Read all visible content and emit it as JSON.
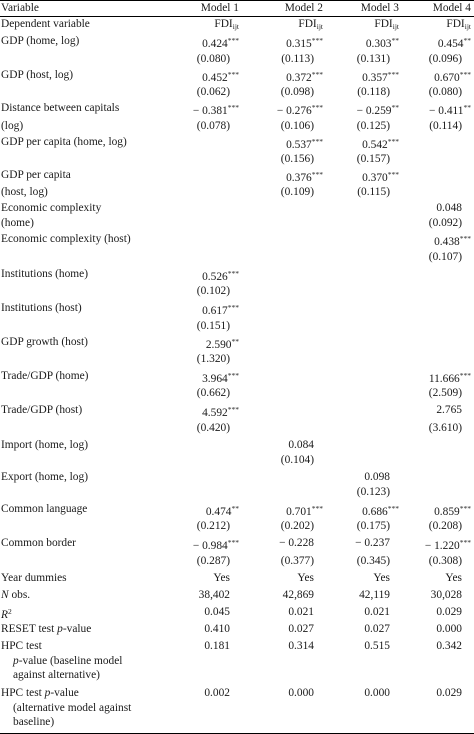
{
  "columns": [
    "Variable",
    "Model 1",
    "Model 2",
    "Model 3",
    "Model 4"
  ],
  "dependent": {
    "label": "Dependent variable",
    "base": "FDI",
    "subscript": "ijt"
  },
  "rows": [
    {
      "label": [
        "GDP (home, log)"
      ],
      "cells": [
        [
          "0.424",
          "***"
        ],
        [
          "0.315",
          "***"
        ],
        [
          "0.303",
          "**"
        ],
        [
          "0.454",
          "**"
        ]
      ],
      "se": [
        "(0.080)",
        "(0.113)",
        "(0.131)",
        "(0.096)"
      ]
    },
    {
      "label": [
        "GDP (host, log)"
      ],
      "cells": [
        [
          "0.452",
          "***"
        ],
        [
          "0.372",
          "***"
        ],
        [
          "0.357",
          "***"
        ],
        [
          "0.670",
          "***"
        ]
      ],
      "se": [
        "(0.062)",
        "(0.098)",
        "(0.118)",
        "(0.080)"
      ]
    },
    {
      "label": [
        "Distance between capitals",
        "(log)"
      ],
      "cells": [
        [
          "− 0.381",
          "***"
        ],
        [
          "− 0.276",
          "***"
        ],
        [
          "− 0.259",
          "**"
        ],
        [
          "− 0.411",
          "**"
        ]
      ],
      "se": [
        "(0.078)",
        "(0.106)",
        "(0.125)",
        "(0.114)"
      ]
    },
    {
      "label": [
        "GDP per capita (home, log)"
      ],
      "cells": [
        [
          "",
          ""
        ],
        [
          "0.537",
          "***"
        ],
        [
          "0.542",
          "***"
        ],
        [
          "",
          ""
        ]
      ],
      "se": [
        "",
        "(0.156)",
        "(0.157)",
        ""
      ]
    },
    {
      "label": [
        "GDP per capita",
        "(host, log)"
      ],
      "cells": [
        [
          "",
          ""
        ],
        [
          "0.376",
          "***"
        ],
        [
          "0.370",
          "***"
        ],
        [
          "",
          ""
        ]
      ],
      "se": [
        "",
        "(0.109)",
        "(0.115)",
        ""
      ]
    },
    {
      "label": [
        "Economic complexity",
        "(home)"
      ],
      "cells": [
        [
          "",
          ""
        ],
        [
          "",
          ""
        ],
        [
          "",
          ""
        ],
        [
          "0.048",
          ""
        ]
      ],
      "se": [
        "",
        "",
        "",
        "(0.092)"
      ]
    },
    {
      "label": [
        "Economic complexity (host)"
      ],
      "cells": [
        [
          "",
          ""
        ],
        [
          "",
          ""
        ],
        [
          "",
          ""
        ],
        [
          "0.438",
          "***"
        ]
      ],
      "se": [
        "",
        "",
        "",
        "(0.107)"
      ]
    },
    {
      "label": [
        "Institutions (home)"
      ],
      "cells": [
        [
          "0.526",
          "***"
        ],
        [
          "",
          ""
        ],
        [
          "",
          ""
        ],
        [
          "",
          ""
        ]
      ],
      "se": [
        "(0.102)",
        "",
        "",
        ""
      ]
    },
    {
      "label": [
        "Institutions (host)"
      ],
      "cells": [
        [
          "0.617",
          "***"
        ],
        [
          "",
          ""
        ],
        [
          "",
          ""
        ],
        [
          "",
          ""
        ]
      ],
      "se": [
        "(0.151)",
        "",
        "",
        ""
      ]
    },
    {
      "label": [
        "GDP growth (host)"
      ],
      "cells": [
        [
          "2.590",
          "**"
        ],
        [
          "",
          ""
        ],
        [
          "",
          ""
        ],
        [
          "",
          ""
        ]
      ],
      "se": [
        "(1.320)",
        "",
        "",
        ""
      ]
    },
    {
      "label": [
        "Trade/GDP (home)"
      ],
      "cells": [
        [
          "3.964",
          "***"
        ],
        [
          "",
          ""
        ],
        [
          "",
          ""
        ],
        [
          "11.666",
          "***"
        ]
      ],
      "se": [
        "(0.662)",
        "",
        "",
        "(2.509)"
      ]
    },
    {
      "label": [
        "Trade/GDP (host)"
      ],
      "cells": [
        [
          "4.592",
          "***"
        ],
        [
          "",
          ""
        ],
        [
          "",
          ""
        ],
        [
          "2.765",
          ""
        ]
      ],
      "se": [
        "(0.420)",
        "",
        "",
        "(3.610)"
      ]
    },
    {
      "label": [
        "Import (home, log)"
      ],
      "cells": [
        [
          "",
          ""
        ],
        [
          "0.084",
          ""
        ],
        [
          "",
          ""
        ],
        [
          "",
          ""
        ]
      ],
      "se": [
        "",
        "(0.104)",
        "",
        ""
      ]
    },
    {
      "label": [
        "Export (home, log)"
      ],
      "cells": [
        [
          "",
          ""
        ],
        [
          "",
          ""
        ],
        [
          "0.098",
          ""
        ],
        [
          "",
          ""
        ]
      ],
      "se": [
        "",
        "",
        "(0.123)",
        ""
      ]
    },
    {
      "label": [
        "Common language"
      ],
      "cells": [
        [
          "0.474",
          "**"
        ],
        [
          "0.701",
          "***"
        ],
        [
          "0.686",
          "***"
        ],
        [
          "0.859",
          "***"
        ]
      ],
      "se": [
        "(0.212)",
        "(0.202)",
        "(0.175)",
        "(0.208)"
      ]
    },
    {
      "label": [
        "Common border"
      ],
      "cells": [
        [
          "− 0.984",
          "***"
        ],
        [
          "− 0.228",
          ""
        ],
        [
          "− 0.237",
          ""
        ],
        [
          "− 1.220",
          "***"
        ]
      ],
      "se": [
        "(0.287)",
        "(0.377)",
        "(0.345)",
        "(0.308)"
      ]
    }
  ],
  "stats": [
    {
      "label": [
        "Year dummies"
      ],
      "italic": "",
      "values": [
        "Yes",
        "Yes",
        "Yes",
        "Yes"
      ]
    },
    {
      "label": [
        " obs."
      ],
      "italic": "N",
      "values": [
        "38,402",
        "42,869",
        "42,119",
        "30,028"
      ]
    },
    {
      "label": [
        ""
      ],
      "italic": "R",
      "sup": "2",
      "values": [
        "0.045",
        "0.021",
        "0.021",
        "0.029"
      ]
    },
    {
      "label": [
        "RESET test ",
        "-value"
      ],
      "italic": "p",
      "inline_italic": true,
      "values": [
        "0.410",
        "0.027",
        "0.027",
        "0.000"
      ]
    },
    {
      "label": [
        "HPC test",
        "-value (baseline model",
        "against alternative)"
      ],
      "italic": "p",
      "hpc": 1,
      "values": [
        "0.181",
        "0.314",
        "0.515",
        "0.342"
      ]
    },
    {
      "label": [
        "HPC test ",
        "-value",
        "(alternative model against",
        "baseline)"
      ],
      "italic": "p",
      "hpc": 2,
      "values": [
        "0.002",
        "0.000",
        "0.000",
        "0.029"
      ]
    }
  ]
}
